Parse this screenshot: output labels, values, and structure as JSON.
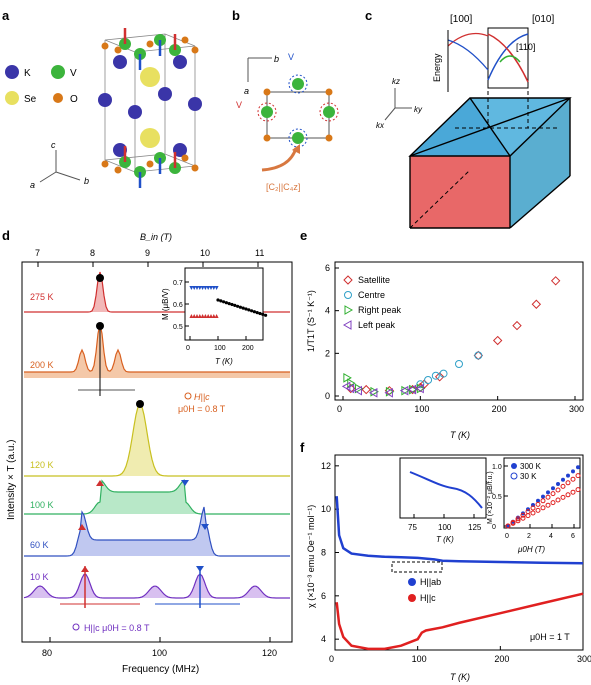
{
  "panels": {
    "a": {
      "label": "a",
      "legend": [
        {
          "name": "K",
          "color": "#3a35a8"
        },
        {
          "name": "V",
          "color": "#3cb43c"
        },
        {
          "name": "Se",
          "color": "#e8e060"
        },
        {
          "name": "O",
          "color": "#d87818"
        }
      ],
      "axes": {
        "a": "a",
        "b": "b",
        "c": "c"
      }
    },
    "b": {
      "label": "b",
      "axes": {
        "a": "a",
        "b": "b"
      },
      "v_down": "V",
      "v_up": "V",
      "symmetry": "[C₂||C₄z]"
    },
    "c": {
      "label": "c",
      "dir_100": "[100]",
      "dir_010": "[010]",
      "dir_110": "[110]",
      "energy": "Energy",
      "kz": "kz",
      "ky": "ky",
      "kx": "kx"
    },
    "d": {
      "label": "d",
      "top_axis_label": "B_in (T)",
      "top_ticks": [
        "7",
        "8",
        "9",
        "10",
        "11"
      ],
      "bottom_axis_label": "Frequency (MHz)",
      "bottom_ticks": [
        "80",
        "100",
        "120"
      ],
      "y_axis_label": "Intensity × T (a.u.)",
      "temps": [
        "275 K",
        "200 K",
        "120 K",
        "100 K",
        "60 K",
        "10 K"
      ],
      "field_note_200": "H||c",
      "field_value_200": "μ0H = 0.8 T",
      "field_note_10": "H||c  μ0H = 0.8 T",
      "inset": {
        "y_label": "M (μB/V)",
        "x_label": "T (K)",
        "y_ticks": [
          "0.7",
          "0.6",
          "0.5"
        ],
        "x_ticks": [
          "0",
          "100",
          "200"
        ]
      }
    },
    "e": {
      "label": "e",
      "y_axis_label": "1/T1T (S⁻¹ K⁻¹)",
      "x_axis_label": "T (K)",
      "y_ticks": [
        "0",
        "2",
        "4",
        "6"
      ],
      "x_ticks": [
        "0",
        "100",
        "200",
        "300"
      ],
      "legend": [
        {
          "name": "Satellite",
          "color": "#d03030"
        },
        {
          "name": "Centre",
          "color": "#30a0c8"
        },
        {
          "name": "Right peak",
          "color": "#30b030"
        },
        {
          "name": "Left peak",
          "color": "#8040c0"
        }
      ]
    },
    "f": {
      "label": "f",
      "y_axis_label": "χ (×10⁻³ emu Oe⁻¹ mol⁻¹)",
      "x_axis_label": "T (K)",
      "y_ticks": [
        "4",
        "6",
        "8",
        "10",
        "12"
      ],
      "x_ticks": [
        "0",
        "100",
        "200",
        "300"
      ],
      "legend": [
        {
          "name": "H||ab",
          "color": "#2040d0"
        },
        {
          "name": "H||c",
          "color": "#e02020"
        }
      ],
      "field": "μ0H = 1 T",
      "inset1": {
        "x_label": "T (K)",
        "x_ticks": [
          "75",
          "100",
          "125"
        ]
      },
      "inset2": {
        "y_label": "M (×10⁻² μB/f.u.)",
        "x_label": "μ0H (T)",
        "x_ticks": [
          "0",
          "2",
          "4",
          "6"
        ],
        "y_ticks": [
          "0",
          "0.5",
          "1.0"
        ],
        "legend": [
          "300 K",
          "30 K"
        ]
      }
    }
  },
  "chart_data": [
    {
      "type": "scatter",
      "title": "",
      "xlabel": "T (K)",
      "ylabel": "1/T1T (S⁻¹ K⁻¹)",
      "xlim": [
        0,
        300
      ],
      "ylim": [
        0,
        6
      ],
      "series": [
        {
          "name": "Satellite",
          "x": [
            10,
            30,
            60,
            90,
            100,
            105,
            125,
            175,
            200,
            225,
            250,
            275
          ],
          "y": [
            0.35,
            0.3,
            0.25,
            0.3,
            0.4,
            0.55,
            0.9,
            1.9,
            2.6,
            3.3,
            4.3,
            5.4
          ]
        },
        {
          "name": "Centre",
          "x": [
            100,
            110,
            120,
            130,
            150,
            175
          ],
          "y": [
            0.55,
            0.75,
            0.95,
            1.05,
            1.5,
            1.9
          ]
        },
        {
          "name": "Right peak",
          "x": [
            5,
            10,
            20,
            40,
            60,
            80,
            90,
            100
          ],
          "y": [
            0.85,
            0.6,
            0.35,
            0.2,
            0.2,
            0.25,
            0.3,
            0.35
          ]
        },
        {
          "name": "Left peak",
          "x": [
            5,
            10,
            20,
            40,
            60,
            80,
            90,
            100
          ],
          "y": [
            0.45,
            0.35,
            0.25,
            0.15,
            0.15,
            0.25,
            0.3,
            0.35
          ]
        }
      ]
    },
    {
      "type": "line",
      "title": "",
      "xlabel": "T (K)",
      "ylabel": "χ (×10⁻³ emu Oe⁻¹ mol⁻¹)",
      "xlim": [
        0,
        300
      ],
      "ylim": [
        3.5,
        12.5
      ],
      "series": [
        {
          "name": "H||ab",
          "x": [
            2,
            5,
            10,
            20,
            40,
            60,
            80,
            100,
            110,
            120,
            130,
            150,
            200,
            250,
            300
          ],
          "y": [
            10.6,
            8.8,
            8.2,
            7.95,
            7.85,
            7.8,
            7.78,
            7.75,
            7.72,
            7.68,
            7.62,
            7.6,
            7.56,
            7.53,
            7.5
          ]
        },
        {
          "name": "H||c",
          "x": [
            2,
            5,
            10,
            20,
            40,
            60,
            80,
            100,
            105,
            110,
            130,
            150,
            200,
            250,
            300
          ],
          "y": [
            5.7,
            4.7,
            4.1,
            3.7,
            3.55,
            3.55,
            3.7,
            4.0,
            4.3,
            4.4,
            4.55,
            4.75,
            5.2,
            5.65,
            6.1
          ]
        }
      ]
    }
  ]
}
